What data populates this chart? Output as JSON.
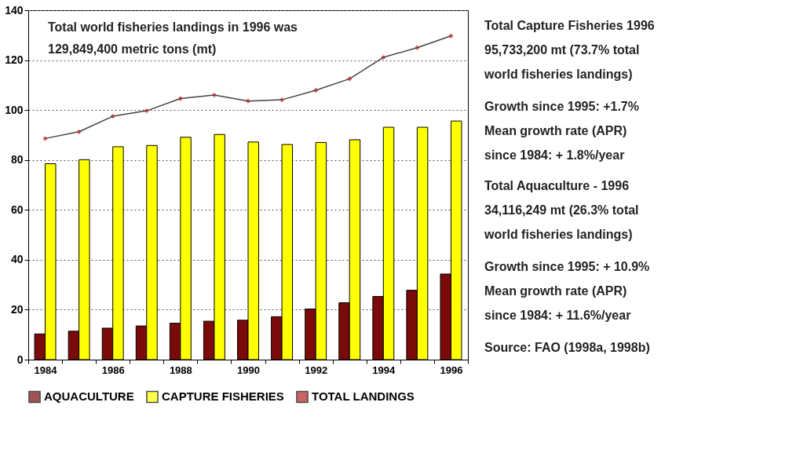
{
  "chart_data": {
    "type": "bar",
    "categories": [
      "1984",
      null,
      "1986",
      null,
      "1988",
      null,
      "1990",
      null,
      "1992",
      null,
      "1994",
      null,
      "1996"
    ],
    "series": [
      {
        "name": "AQUACULTURE",
        "color": "#7b0a0a",
        "values": [
          10.3,
          11.4,
          12.6,
          13.5,
          14.6,
          15.4,
          15.8,
          17.2,
          20.3,
          22.8,
          25.3,
          27.8,
          34.3
        ]
      },
      {
        "name": "CAPTURE FISHERIES",
        "color": "#ffff00",
        "values": [
          78.5,
          80.1,
          85.3,
          85.8,
          89.1,
          90.2,
          87.2,
          86.2,
          87.0,
          88.1,
          93.1,
          93.1,
          95.6
        ]
      },
      {
        "name": "TOTAL LANDINGS",
        "type": "line",
        "color": "#b22222",
        "marker": "diamond",
        "values": [
          88.6,
          91.3,
          97.5,
          99.7,
          104.6,
          106.0,
          103.6,
          104.1,
          107.9,
          112.5,
          121.1,
          125.0,
          129.7
        ]
      }
    ],
    "ylim": [
      0,
      140
    ],
    "yticks": [
      0,
      20,
      40,
      60,
      80,
      100,
      120,
      140
    ],
    "grid": "y",
    "legend": "bottom",
    "annotations": [
      "Total world fisheries landings in 1996 was",
      "129,849,400 metric tons (mt)",
      "Total Capture Fisheries 1996",
      "95,733,200 mt (73.7% total",
      "world fisheries landings)",
      "Growth since 1995:  +1.7%",
      "Mean growth rate (APR)",
      "since 1984: + 1.8%/year",
      "Total Aquaculture - 1996",
      "34,116,249 mt (26.3% total",
      "world fisheries landings)",
      "Growth since 1995:  + 10.9%",
      "Mean growth rate (APR)",
      "since 1984: + 11.6%/year",
      "Source: FAO (1998a, 1998b)"
    ]
  }
}
